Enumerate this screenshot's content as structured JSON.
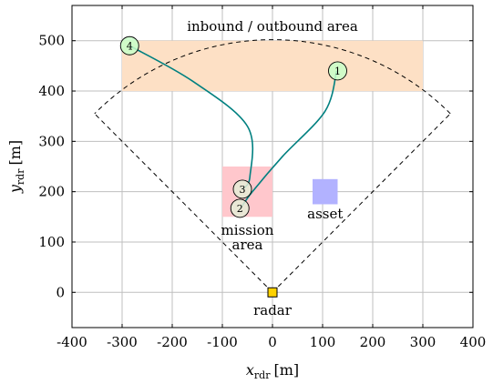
{
  "chart_data": {
    "type": "scatter",
    "xlabel_main": "x",
    "xlabel_sub": "rdr",
    "xlabel_unit": "[m]",
    "ylabel_main": "y",
    "ylabel_sub": "rdr",
    "ylabel_unit": "[m]",
    "xlim": [
      -400,
      400
    ],
    "ylim": [
      -70,
      570
    ],
    "x_ticks": [
      -400,
      -300,
      -200,
      -100,
      0,
      100,
      200,
      300,
      400
    ],
    "y_ticks": [
      0,
      100,
      200,
      300,
      400,
      500
    ],
    "x_tick_labels": [
      "-400",
      "-300",
      "-200",
      "-100",
      "0",
      "100",
      "200",
      "300",
      "400"
    ],
    "y_tick_labels": [
      "0",
      "100",
      "200",
      "300",
      "400",
      "500"
    ],
    "grid": true,
    "regions": [
      {
        "name": "inbound-outbound-area",
        "label": "inbound / outbound area",
        "x": [
          -300,
          300
        ],
        "y": [
          400,
          500
        ],
        "color": "#fde0c5"
      },
      {
        "name": "mission-area",
        "label_lines": [
          "mission",
          "area"
        ],
        "x": [
          -100,
          0
        ],
        "y": [
          150,
          250
        ],
        "color": "#ffc7cc"
      },
      {
        "name": "asset",
        "label": "asset",
        "x": [
          80,
          130
        ],
        "y": [
          175,
          225
        ],
        "color": "#b2b2ff"
      }
    ],
    "radar": {
      "label": "radar",
      "x": 0,
      "y": 0,
      "color": "#ffd200"
    },
    "coverage_edges": [
      [
        [
          0,
          0
        ],
        [
          -355,
          355
        ]
      ],
      [
        [
          0,
          0
        ],
        [
          355,
          355
        ]
      ]
    ],
    "coverage_arc": {
      "radius": 502,
      "from_deg": 45,
      "to_deg": 135
    },
    "trajectories": [
      {
        "name": "trajectory-1",
        "color": "#008080",
        "points": [
          [
            128,
            440
          ],
          [
            105,
            360
          ],
          [
            20,
            270
          ],
          [
            -40,
            200
          ],
          [
            -65,
            165
          ]
        ]
      },
      {
        "name": "trajectory-4",
        "color": "#008080",
        "points": [
          [
            -285,
            490
          ],
          [
            -160,
            420
          ],
          [
            -50,
            330
          ],
          [
            -45,
            230
          ],
          [
            -60,
            205
          ]
        ]
      }
    ],
    "waypoints": [
      {
        "label": "1",
        "x": 130,
        "y": 440,
        "color": "#c8ffc8"
      },
      {
        "label": "2",
        "x": -65,
        "y": 167,
        "color": "#e5ecd6"
      },
      {
        "label": "3",
        "x": -60,
        "y": 205,
        "color": "#e5ecd6"
      },
      {
        "label": "4",
        "x": -285,
        "y": 490,
        "color": "#c8ffc8"
      }
    ]
  }
}
